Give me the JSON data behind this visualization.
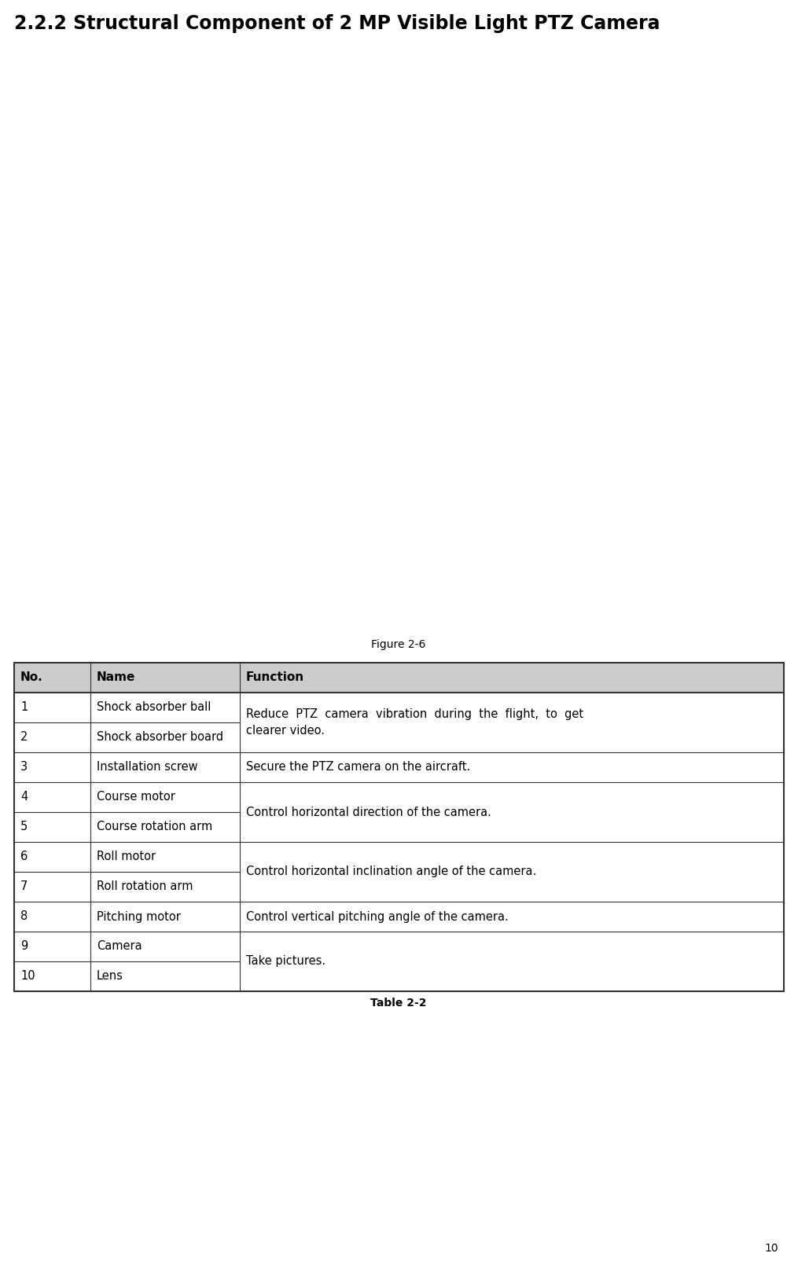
{
  "title": "2.2.2 Structural Component of 2 MP Visible Light PTZ Camera",
  "figure_caption": "Figure 2-6",
  "table_caption": "Table 2-2",
  "page_number": "10",
  "header_bg_color": "#cccccc",
  "border_color": "#333333",
  "green_color": "#2db230",
  "white": "#ffffff",
  "table_headers": [
    "No.",
    "Name",
    "Function"
  ],
  "table_rows": [
    [
      "1",
      "Shock absorber ball",
      "Reduce  PTZ  camera  vibration  during  the  flight,  to  get",
      true
    ],
    [
      "2",
      "Shock absorber board",
      "clearer video.",
      false
    ],
    [
      "3",
      "Installation screw",
      "Secure the PTZ camera on the aircraft.",
      true
    ],
    [
      "4",
      "Course motor",
      "Control horizontal direction of the camera.",
      false
    ],
    [
      "5",
      "Course rotation arm",
      "",
      false
    ],
    [
      "6",
      "Roll motor",
      "Control horizontal inclination angle of the camera.",
      false
    ],
    [
      "7",
      "Roll rotation arm",
      "",
      false
    ],
    [
      "8",
      "Pitching motor",
      "Control vertical pitching angle of the camera.",
      true
    ],
    [
      "9",
      "Camera",
      "Take pictures.",
      false
    ],
    [
      "10",
      "Lens",
      "",
      false
    ]
  ],
  "title_fontsize": 17,
  "header_fontsize": 11,
  "body_fontsize": 10.5,
  "caption_fontsize": 10,
  "page_num_fontsize": 10,
  "fig_width": 10.15,
  "fig_height": 16.13,
  "dpi": 100
}
